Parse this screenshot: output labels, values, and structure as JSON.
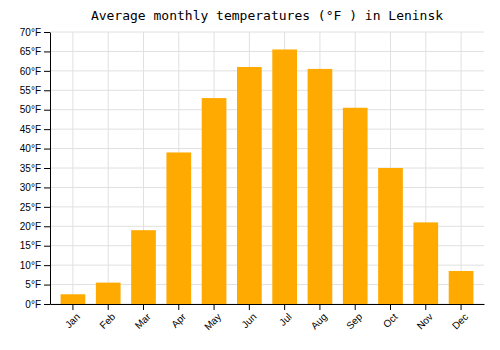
{
  "chart_data": {
    "type": "bar",
    "title": "Average monthly temperatures (°F ) in Leninsk",
    "categories": [
      "Jan",
      "Feb",
      "Mar",
      "Apr",
      "May",
      "Jun",
      "Jul",
      "Aug",
      "Sep",
      "Oct",
      "Nov",
      "Dec"
    ],
    "values": [
      2.5,
      5.5,
      19,
      39,
      53,
      61,
      65.5,
      60.5,
      50.5,
      35,
      21,
      8.5
    ],
    "color": "#FFAA00",
    "ylim": [
      0,
      70
    ],
    "yticks": [
      {
        "value": 0,
        "label": "0°F"
      },
      {
        "value": 5,
        "label": "5°F"
      },
      {
        "value": 10,
        "label": "10°F"
      },
      {
        "value": 15,
        "label": "15°F"
      },
      {
        "value": 20,
        "label": "20°F"
      },
      {
        "value": 25,
        "label": "25°F"
      },
      {
        "value": 30,
        "label": "30°F"
      },
      {
        "value": 35,
        "label": "35°F"
      },
      {
        "value": 40,
        "label": "40°F"
      },
      {
        "value": 45,
        "label": "45°F"
      },
      {
        "value": 50,
        "label": "50°F"
      },
      {
        "value": 55,
        "label": "55°F"
      },
      {
        "value": 60,
        "label": "60°F"
      },
      {
        "value": 65,
        "label": "65°F"
      },
      {
        "value": 70,
        "label": "70°F"
      }
    ],
    "grid": true
  }
}
